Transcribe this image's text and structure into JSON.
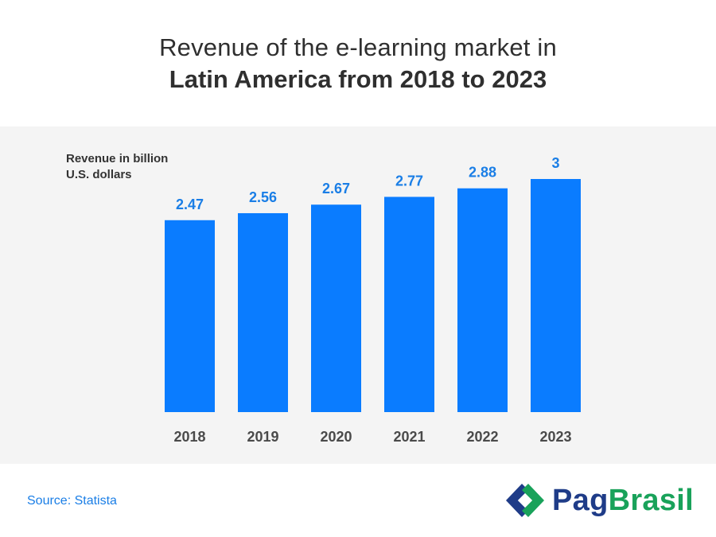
{
  "title_line1": "Revenue of the e-learning market in",
  "title_line2": "Latin America from 2018 to 2023",
  "source": "Source: Statista",
  "logo": {
    "part1": "Pag",
    "part2": "Brasil",
    "icon": "pagbrasil-logo-icon"
  },
  "colors": {
    "bar": "#0a7cff",
    "label": "#1a7ee6",
    "panel": "#f4f4f4",
    "tick": "#4a4a4a"
  },
  "chart_data": {
    "type": "bar",
    "title": "Revenue of the e-learning market in Latin America from 2018 to 2023",
    "ylabel": "Revenue in billion U.S. dollars",
    "ylabel_lines": [
      "Revenue in billion",
      "U.S. dollars"
    ],
    "xlabel": "",
    "categories": [
      "2018",
      "2019",
      "2020",
      "2021",
      "2022",
      "2023"
    ],
    "values": [
      2.47,
      2.56,
      2.67,
      2.77,
      2.88,
      3
    ],
    "value_labels": [
      "2.47",
      "2.56",
      "2.67",
      "2.77",
      "2.88",
      "3"
    ],
    "ylim": [
      0,
      3
    ],
    "grid": false,
    "legend": false
  }
}
